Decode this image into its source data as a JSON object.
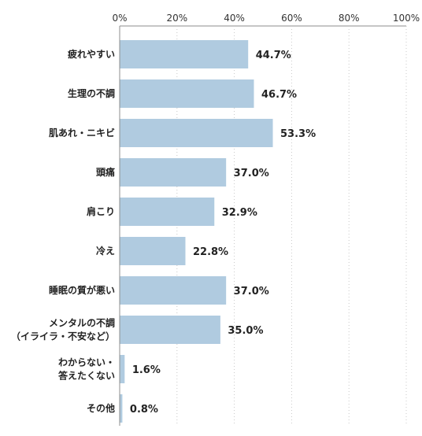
{
  "chart_data": {
    "type": "bar",
    "orientation": "horizontal",
    "title": "",
    "xlabel": "",
    "ylabel": "",
    "xlim": [
      0,
      100
    ],
    "ticks": [
      "0%",
      "20%",
      "40%",
      "60%",
      "80%",
      "100%"
    ],
    "tick_values": [
      0,
      20,
      40,
      60,
      80,
      100
    ],
    "grid": true,
    "bar_color": "#b0cbe0",
    "categories": [
      [
        "疲れやすい"
      ],
      [
        "生理の不調"
      ],
      [
        "肌あれ・ニキビ"
      ],
      [
        "頭痛"
      ],
      [
        "肩こり"
      ],
      [
        "冷え"
      ],
      [
        "睡眠の質が悪い"
      ],
      [
        "メンタルの不調",
        "（イライラ・不安など）"
      ],
      [
        "わからない・",
        "答えたくない"
      ],
      [
        "その他"
      ]
    ],
    "values": [
      44.7,
      46.7,
      53.3,
      37.0,
      32.9,
      22.8,
      37.0,
      35.0,
      1.6,
      0.8
    ],
    "value_labels": [
      "44.7%",
      "46.7%",
      "53.3%",
      "37.0%",
      "32.9%",
      "22.8%",
      "37.0%",
      "35.0%",
      "1.6%",
      "0.8%"
    ]
  }
}
